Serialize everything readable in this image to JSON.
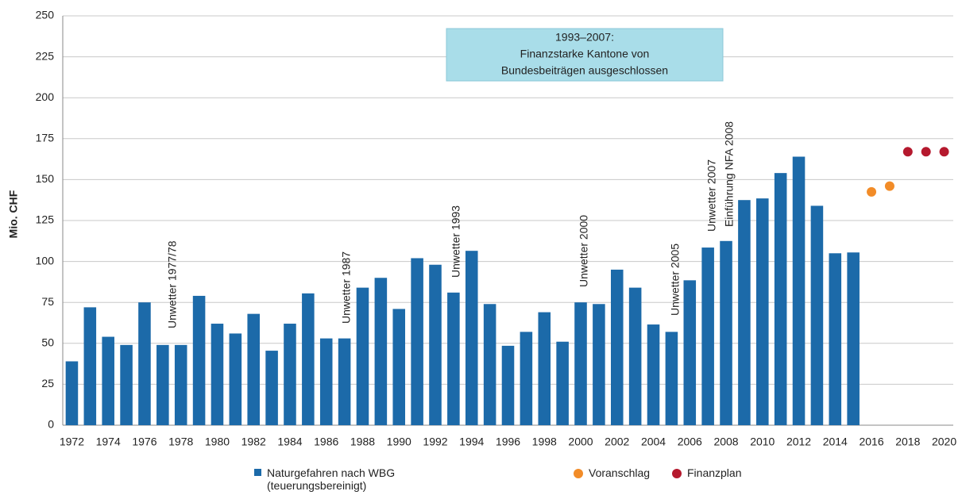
{
  "chart_data": {
    "type": "bar",
    "ylabel": "Mio. CHF",
    "categories": [
      "1972",
      null,
      "1974",
      null,
      "1976",
      null,
      "1978",
      null,
      "1980",
      null,
      "1982",
      null,
      "1984",
      null,
      "1986",
      null,
      "1988",
      null,
      "1990",
      null,
      "1992",
      null,
      "1994",
      null,
      "1996",
      null,
      "1998",
      null,
      "2000",
      null,
      "2002",
      null,
      "2004",
      null,
      "2006",
      null,
      "2008",
      null,
      "2010",
      null,
      "2012",
      null,
      "2014",
      null,
      "2016",
      null,
      "2018",
      null,
      "2020"
    ],
    "series": [
      {
        "name": "Naturgefahren nach WBG (teuerungsbereinigt)",
        "type": "bar",
        "color": "#1c6aa9",
        "values": [
          39,
          72,
          54,
          49,
          75,
          49,
          49,
          79,
          62,
          56,
          68,
          45.5,
          62,
          80.5,
          53,
          53,
          84,
          90,
          71,
          102,
          98,
          81,
          106.5,
          74,
          48.5,
          57,
          69,
          51,
          75,
          74,
          95,
          84,
          61.5,
          57,
          88.5,
          108.5,
          112.5,
          137.5,
          138.5,
          154,
          164,
          134,
          105,
          105.5,
          null,
          null,
          null,
          null,
          null
        ]
      },
      {
        "name": "Voranschlag",
        "type": "scatter",
        "color": "#f28c28",
        "values": [
          null,
          null,
          null,
          null,
          null,
          null,
          null,
          null,
          null,
          null,
          null,
          null,
          null,
          null,
          null,
          null,
          null,
          null,
          null,
          null,
          null,
          null,
          null,
          null,
          null,
          null,
          null,
          null,
          null,
          null,
          null,
          null,
          null,
          null,
          null,
          null,
          null,
          null,
          null,
          null,
          null,
          null,
          null,
          null,
          142.5,
          146,
          null,
          null,
          null
        ]
      },
      {
        "name": "Finanzplan",
        "type": "scatter",
        "color": "#b5192e",
        "values": [
          null,
          null,
          null,
          null,
          null,
          null,
          null,
          null,
          null,
          null,
          null,
          null,
          null,
          null,
          null,
          null,
          null,
          null,
          null,
          null,
          null,
          null,
          null,
          null,
          null,
          null,
          null,
          null,
          null,
          null,
          null,
          null,
          null,
          null,
          null,
          null,
          null,
          null,
          null,
          null,
          null,
          null,
          null,
          null,
          null,
          null,
          167,
          167,
          167
        ]
      }
    ],
    "ylim": [
      0,
      250
    ],
    "yticks": [
      0,
      25,
      50,
      75,
      100,
      125,
      150,
      175,
      200,
      225,
      250
    ],
    "grid": true,
    "annotations": [
      "Unwetter 1977/78",
      "Unwetter 1987",
      "Unwetter 1993",
      "Unwetter 2000",
      "Unwetter 2005",
      "Unwetter 2007",
      "Einführung NFA  2008"
    ],
    "box_text": [
      "1993–2007:",
      "Finanzstarke Kantone von",
      "Bundesbeiträgen ausgeschlossen"
    ],
    "legend": "bottom"
  }
}
